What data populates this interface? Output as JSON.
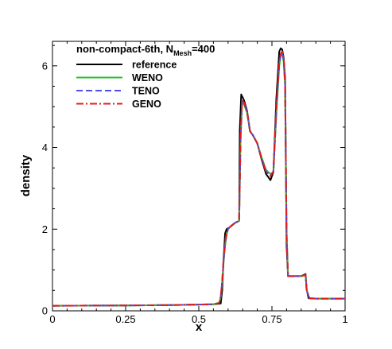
{
  "chart_data": {
    "type": "line",
    "title": "non-compact-6th, N",
    "title_sub": "Mesh",
    "title_suffix": "=400",
    "xlabel": "x",
    "ylabel": "density",
    "xlim": [
      0,
      1
    ],
    "ylim": [
      0,
      6.6
    ],
    "xticks": [
      0,
      0.25,
      0.5,
      0.75,
      1
    ],
    "xtick_labels": [
      "0",
      "0.25",
      "0.5",
      "0.75",
      "1"
    ],
    "yticks": [
      0,
      2,
      4,
      6
    ],
    "ytick_labels": [
      "0",
      "2",
      "4",
      "6"
    ],
    "legend_position": "top-left",
    "grid": false,
    "series": [
      {
        "name": "reference",
        "color": "#000000",
        "dash": "solid",
        "x": [
          0,
          0.2,
          0.4,
          0.55,
          0.575,
          0.58,
          0.585,
          0.59,
          0.595,
          0.6,
          0.615,
          0.625,
          0.638,
          0.64,
          0.645,
          0.655,
          0.665,
          0.675,
          0.685,
          0.7,
          0.715,
          0.73,
          0.745,
          0.755,
          0.765,
          0.775,
          0.78,
          0.785,
          0.79,
          0.795,
          0.8,
          0.805,
          0.825,
          0.85,
          0.865,
          0.868,
          0.875,
          0.9,
          0.95,
          1.0
        ],
        "y": [
          0.125,
          0.13,
          0.14,
          0.16,
          0.18,
          0.5,
          1.3,
          1.9,
          2.0,
          2.02,
          2.1,
          2.16,
          2.2,
          4.4,
          5.3,
          5.15,
          4.9,
          4.4,
          4.3,
          4.1,
          3.7,
          3.35,
          3.2,
          3.4,
          5.2,
          6.35,
          6.43,
          6.4,
          6.2,
          5.7,
          1.6,
          0.85,
          0.85,
          0.85,
          0.9,
          0.55,
          0.31,
          0.3,
          0.3,
          0.3
        ]
      },
      {
        "name": "WENO",
        "color": "#2ebd2e",
        "dash": "solid",
        "x": [
          0,
          0.2,
          0.4,
          0.55,
          0.57,
          0.575,
          0.58,
          0.585,
          0.59,
          0.595,
          0.6,
          0.61,
          0.625,
          0.638,
          0.643,
          0.648,
          0.655,
          0.665,
          0.675,
          0.685,
          0.7,
          0.715,
          0.73,
          0.745,
          0.755,
          0.765,
          0.775,
          0.78,
          0.785,
          0.79,
          0.795,
          0.8,
          0.805,
          0.825,
          0.85,
          0.865,
          0.869,
          0.878,
          0.9,
          0.95,
          1.0
        ],
        "y": [
          0.125,
          0.13,
          0.14,
          0.16,
          0.2,
          0.35,
          0.7,
          1.2,
          1.6,
          1.85,
          2.0,
          2.08,
          2.16,
          2.2,
          4.2,
          5.1,
          5.05,
          4.85,
          4.4,
          4.3,
          4.1,
          3.75,
          3.45,
          3.35,
          3.4,
          4.8,
          6.0,
          6.25,
          6.3,
          6.1,
          5.5,
          2.0,
          0.85,
          0.85,
          0.85,
          0.88,
          0.5,
          0.31,
          0.3,
          0.3,
          0.3
        ]
      },
      {
        "name": "TENO",
        "color": "#4f4fe8",
        "dash": "dash",
        "x": [
          0,
          0.2,
          0.4,
          0.55,
          0.57,
          0.575,
          0.58,
          0.585,
          0.59,
          0.595,
          0.6,
          0.61,
          0.625,
          0.638,
          0.643,
          0.648,
          0.655,
          0.665,
          0.675,
          0.685,
          0.7,
          0.715,
          0.73,
          0.745,
          0.755,
          0.765,
          0.775,
          0.78,
          0.785,
          0.79,
          0.795,
          0.8,
          0.805,
          0.825,
          0.85,
          0.865,
          0.869,
          0.878,
          0.9,
          0.95,
          1.0
        ],
        "y": [
          0.125,
          0.13,
          0.14,
          0.16,
          0.19,
          0.33,
          0.72,
          1.25,
          1.65,
          1.88,
          2.0,
          2.08,
          2.16,
          2.2,
          4.25,
          5.15,
          5.08,
          4.87,
          4.4,
          4.3,
          4.1,
          3.73,
          3.42,
          3.32,
          3.4,
          4.9,
          6.05,
          6.28,
          6.32,
          6.15,
          5.55,
          1.9,
          0.85,
          0.85,
          0.85,
          0.88,
          0.5,
          0.31,
          0.3,
          0.3,
          0.3
        ]
      },
      {
        "name": "GENO",
        "color": "#e01c1c",
        "dash": "dashdot",
        "x": [
          0,
          0.2,
          0.4,
          0.55,
          0.57,
          0.575,
          0.58,
          0.585,
          0.59,
          0.595,
          0.6,
          0.61,
          0.625,
          0.638,
          0.643,
          0.648,
          0.655,
          0.665,
          0.675,
          0.685,
          0.7,
          0.715,
          0.73,
          0.745,
          0.755,
          0.765,
          0.775,
          0.78,
          0.785,
          0.79,
          0.795,
          0.8,
          0.805,
          0.825,
          0.85,
          0.865,
          0.869,
          0.878,
          0.9,
          0.95,
          1.0
        ],
        "y": [
          0.125,
          0.13,
          0.14,
          0.16,
          0.19,
          0.34,
          0.75,
          1.3,
          1.7,
          1.9,
          2.0,
          2.08,
          2.16,
          2.2,
          4.3,
          5.18,
          5.1,
          4.88,
          4.4,
          4.3,
          4.1,
          3.72,
          3.4,
          3.3,
          3.42,
          5.0,
          6.1,
          6.3,
          6.35,
          6.2,
          5.6,
          1.8,
          0.85,
          0.85,
          0.85,
          0.88,
          0.5,
          0.31,
          0.3,
          0.3,
          0.3
        ]
      }
    ]
  }
}
